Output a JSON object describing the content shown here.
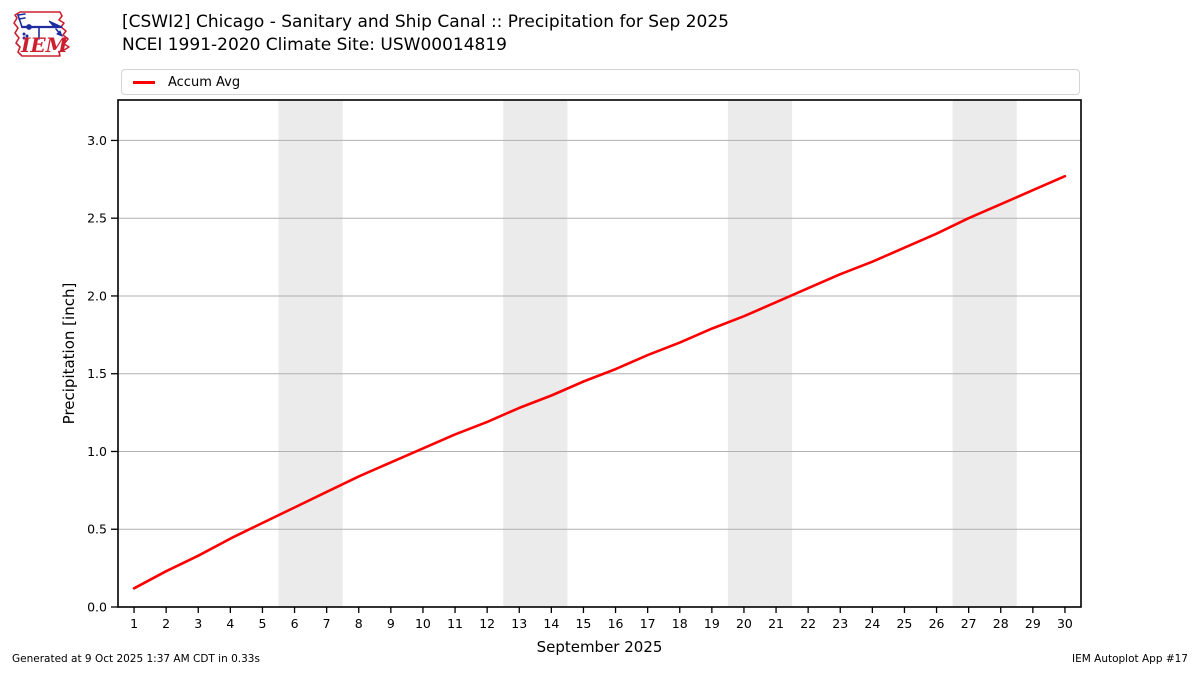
{
  "logo": {
    "label": "IEM"
  },
  "chart_data": {
    "type": "line",
    "title": "[CSWI2] Chicago - Sanitary and Ship Canal :: Precipitation for Sep 2025",
    "subtitle": "NCEI 1991-2020 Climate Site: USW00014819",
    "xlabel": "September 2025",
    "ylabel": "Precipitation [inch]",
    "x": [
      1,
      2,
      3,
      4,
      5,
      6,
      7,
      8,
      9,
      10,
      11,
      12,
      13,
      14,
      15,
      16,
      17,
      18,
      19,
      20,
      21,
      22,
      23,
      24,
      25,
      26,
      27,
      28,
      29,
      30
    ],
    "series": [
      {
        "name": "Accum Avg",
        "color": "#ff0000",
        "values": [
          0.12,
          0.23,
          0.33,
          0.44,
          0.54,
          0.64,
          0.74,
          0.84,
          0.93,
          1.02,
          1.11,
          1.19,
          1.28,
          1.36,
          1.45,
          1.53,
          1.62,
          1.7,
          1.79,
          1.87,
          1.96,
          2.05,
          2.14,
          2.22,
          2.31,
          2.4,
          2.5,
          2.59,
          2.68,
          2.77
        ]
      }
    ],
    "xticks": [
      1,
      2,
      3,
      4,
      5,
      6,
      7,
      8,
      9,
      10,
      11,
      12,
      13,
      14,
      15,
      16,
      17,
      18,
      19,
      20,
      21,
      22,
      23,
      24,
      25,
      26,
      27,
      28,
      29,
      30
    ],
    "yticks": [
      0.0,
      0.5,
      1.0,
      1.5,
      2.0,
      2.5,
      3.0
    ],
    "ytick_labels": [
      "0.0",
      "0.5",
      "1.0",
      "1.5",
      "2.0",
      "2.5",
      "3.0"
    ],
    "xlim": [
      0.5,
      30.5
    ],
    "ylim": [
      0,
      3.26
    ],
    "grid": "horizontal",
    "grid_color": "#b0b0b0",
    "weekend_bands": [
      [
        5.5,
        7.5
      ],
      [
        12.5,
        14.5
      ],
      [
        19.5,
        21.5
      ],
      [
        26.5,
        28.5
      ]
    ],
    "band_color": "#ebebeb",
    "legend_position": "top",
    "spine_color": "#000000"
  },
  "footer": {
    "generated": "Generated at 9 Oct 2025 1:37 AM CDT in 0.33s",
    "app": "IEM Autoplot App #17"
  }
}
